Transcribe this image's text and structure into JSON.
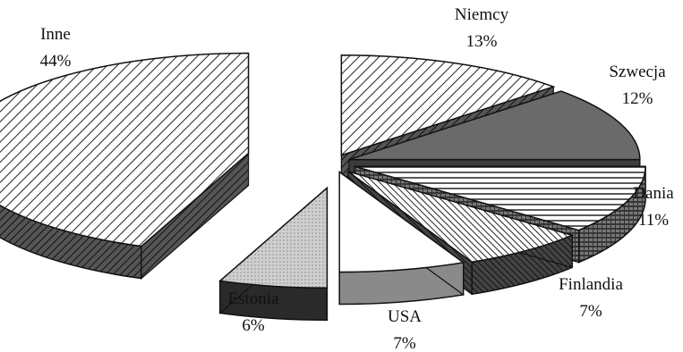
{
  "chart_data": {
    "type": "pie",
    "style": "3d exploded pie with hatched slices",
    "legend": "none (labels placed next to slices)",
    "slices": [
      {
        "label": "Niemcy",
        "value": 13,
        "value_label": "13%",
        "pattern": "diagonal-hatch"
      },
      {
        "label": "Szwecja",
        "value": 12,
        "value_label": "12%",
        "pattern": "dark-gray"
      },
      {
        "label": "Dania",
        "value": 11,
        "value_label": "11%",
        "pattern": "horizontal-lines"
      },
      {
        "label": "Finlandia",
        "value": 7,
        "value_label": "7%",
        "pattern": "dense-diagonal-hatch"
      },
      {
        "label": "USA",
        "value": 7,
        "value_label": "7%",
        "pattern": "white"
      },
      {
        "label": "Estonia",
        "value": 6,
        "value_label": "6%",
        "pattern": "light-gray"
      },
      {
        "label": "Inne",
        "value": 44,
        "value_label": "44%",
        "pattern": "diagonal-hatch"
      }
    ]
  }
}
